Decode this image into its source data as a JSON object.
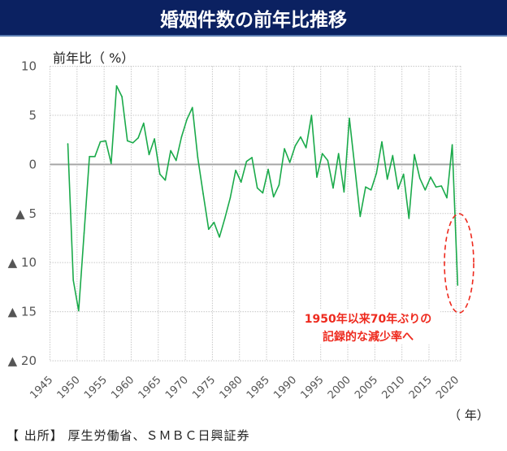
{
  "header": {
    "title": "婚姻件数の前年比推移"
  },
  "axis_labels": {
    "y_unit": "前年比（ %）",
    "x_unit": "（ 年）"
  },
  "footer": {
    "source": "【 出所】 厚生労働省、ＳＭＢＣ日興証券"
  },
  "colors": {
    "line": "#1aaa4a",
    "title_bg": "#0B2161",
    "annotation": "#ee2a1e",
    "zero_line": "#a6a6a6",
    "grid": "#c8c8c8"
  },
  "chart_data": {
    "type": "line",
    "title": "婚姻件数の前年比推移",
    "xlabel": "（ 年）",
    "ylabel": "前年比（ %）",
    "xlim": [
      1945,
      2020
    ],
    "ylim": [
      -20,
      10
    ],
    "grid": true,
    "y_ticks": [
      {
        "value": 10,
        "label": "10"
      },
      {
        "value": 5,
        "label": "5"
      },
      {
        "value": 0,
        "label": "0"
      },
      {
        "value": -5,
        "label": "▲ 5"
      },
      {
        "value": -10,
        "label": "▲ 10"
      },
      {
        "value": -15,
        "label": "▲ 15"
      },
      {
        "value": -20,
        "label": "▲ 20"
      }
    ],
    "x_ticks": [
      "1945",
      "1950",
      "1955",
      "1960",
      "1965",
      "1970",
      "1975",
      "1980",
      "1985",
      "1990",
      "1995",
      "2000",
      "2005",
      "2010",
      "2015",
      "2020"
    ],
    "series": [
      {
        "name": "婚姻件数 前年比",
        "x": [
          1948,
          1949,
          1950,
          1951,
          1952,
          1953,
          1954,
          1955,
          1956,
          1957,
          1958,
          1959,
          1960,
          1961,
          1962,
          1963,
          1964,
          1965,
          1966,
          1967,
          1968,
          1969,
          1970,
          1971,
          1972,
          1973,
          1974,
          1975,
          1976,
          1977,
          1978,
          1979,
          1980,
          1981,
          1982,
          1983,
          1984,
          1985,
          1986,
          1987,
          1988,
          1989,
          1990,
          1991,
          1992,
          1993,
          1994,
          1995,
          1996,
          1997,
          1998,
          1999,
          2000,
          2001,
          2002,
          2003,
          2004,
          2005,
          2006,
          2007,
          2008,
          2009,
          2010,
          2011,
          2012,
          2013,
          2014,
          2015,
          2016,
          2017,
          2018,
          2019,
          2020
        ],
        "values": [
          2.1,
          -11.8,
          -14.9,
          -7.0,
          0.8,
          0.8,
          2.3,
          2.4,
          0.1,
          8.0,
          6.9,
          2.4,
          2.2,
          2.7,
          4.2,
          1.0,
          2.6,
          -1.0,
          -1.6,
          1.4,
          0.4,
          2.8,
          4.6,
          5.8,
          0.7,
          -3.0,
          -6.6,
          -5.9,
          -7.4,
          -5.5,
          -3.4,
          -0.6,
          -1.8,
          0.3,
          0.7,
          -2.4,
          -2.9,
          -0.5,
          -3.3,
          -2.1,
          1.6,
          0.2,
          1.9,
          2.8,
          1.7,
          5.0,
          -1.3,
          1.1,
          0.4,
          -2.4,
          1.1,
          -2.8,
          4.7,
          -0.3,
          -5.3,
          -2.3,
          -2.6,
          -0.9,
          2.3,
          -1.5,
          0.9,
          -2.5,
          -1.0,
          -5.5,
          1.0,
          -1.4,
          -2.6,
          -1.3,
          -2.3,
          -2.2,
          -3.4,
          2.0,
          -12.3
        ]
      }
    ],
    "annotations": [
      {
        "lines": [
          "1950年以来70年ぶりの",
          "記録的な減少率へ"
        ],
        "target_x": 2020,
        "highlight": "dashed-ellipse"
      }
    ],
    "legend": "none"
  }
}
